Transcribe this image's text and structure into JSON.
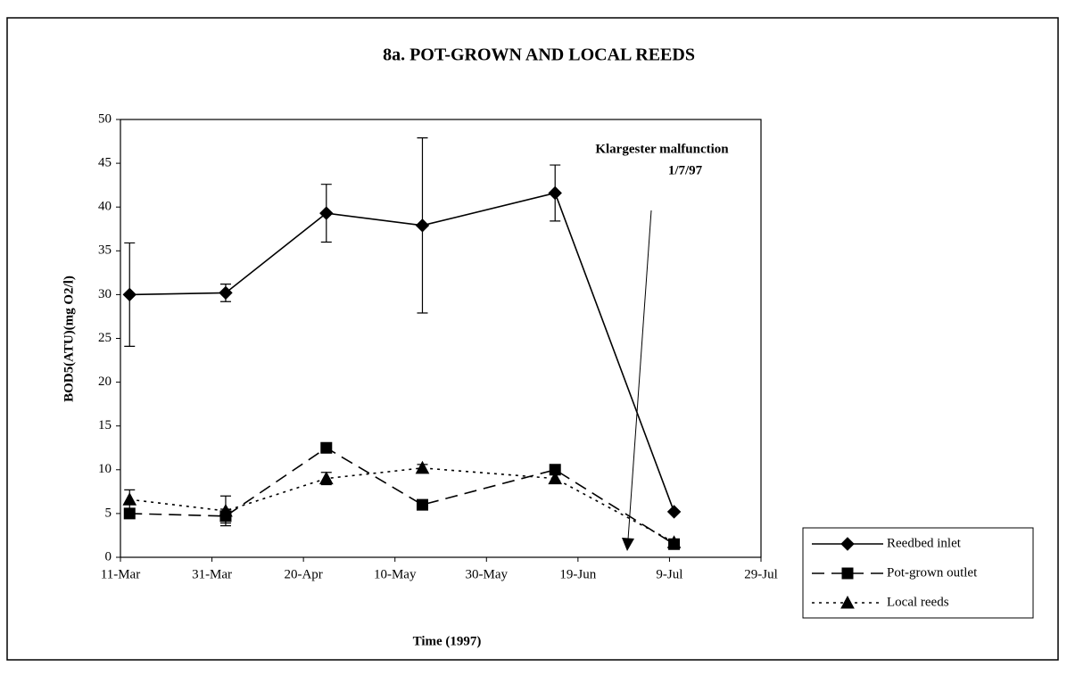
{
  "chart_data": {
    "type": "line",
    "title": "8a. POT-GROWN AND LOCAL REEDS",
    "x_label": "Time (1997)",
    "y_label": "BOD5(ATU)(mg O2/l)",
    "annotation": {
      "lines": [
        "Klargester malfunction",
        "1/7/97"
      ]
    },
    "x": [
      "1997-03-13",
      "1997-04-03",
      "1997-04-25",
      "1997-05-16",
      "1997-06-14",
      "1997-07-10"
    ],
    "series": [
      {
        "name": "Reedbed inlet",
        "color": "#000000",
        "line_style": "solid",
        "marker": "diamond",
        "values": [
          30,
          30.2,
          39.3,
          37.9,
          41.6,
          5.2
        ],
        "errors": [
          5.9,
          1,
          3.3,
          10,
          3.2,
          null
        ]
      },
      {
        "name": "Pot-grown outlet",
        "color": "#000000",
        "line_style": "dashed",
        "marker": "square",
        "values": [
          5,
          4.7,
          12.5,
          6,
          10,
          1.5
        ],
        "errors": [
          null,
          0.8,
          null,
          null,
          null,
          null
        ]
      },
      {
        "name": "Local reeds",
        "color": "#000000",
        "line_style": "dotted",
        "marker": "triangle",
        "values": [
          6.6,
          5.3,
          9,
          10.2,
          9,
          1.7
        ],
        "errors": [
          1.1,
          1.7,
          0.7,
          0.4,
          0.5,
          null
        ]
      }
    ],
    "xlim": [
      "1997-03-11",
      "1997-07-29"
    ],
    "xticks": [
      {
        "value": "1997-03-11",
        "label": "11-Mar"
      },
      {
        "value": "1997-03-31",
        "label": "31-Mar"
      },
      {
        "value": "1997-04-20",
        "label": "20-Apr"
      },
      {
        "value": "1997-05-10",
        "label": "10-May"
      },
      {
        "value": "1997-05-30",
        "label": "30-May"
      },
      {
        "value": "1997-06-19",
        "label": "19-Jun"
      },
      {
        "value": "1997-07-09",
        "label": "9-Jul"
      },
      {
        "value": "1997-07-29",
        "label": "29-Jul"
      }
    ],
    "ylim": [
      0,
      50
    ],
    "yticks": [
      0,
      5,
      10,
      15,
      20,
      25,
      30,
      35,
      40,
      45,
      50
    ],
    "grid": false,
    "legend": "right"
  }
}
